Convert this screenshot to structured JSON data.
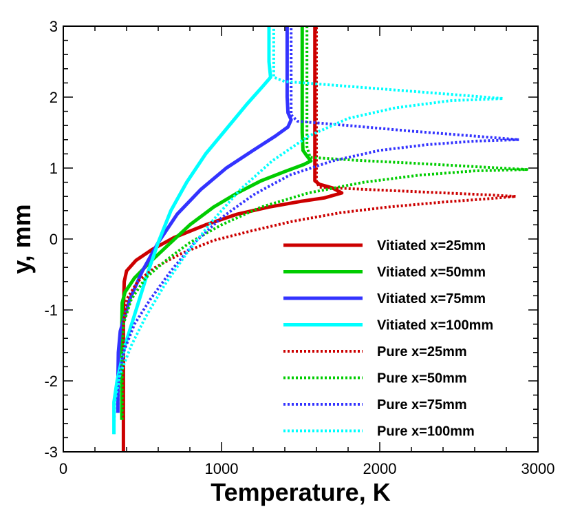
{
  "chart_data": {
    "type": "line",
    "xlabel": "Temperature, K",
    "ylabel": "y, mm",
    "xlim": [
      0,
      3000
    ],
    "ylim": [
      -3,
      3
    ],
    "x_ticks": [
      0,
      1000,
      2000,
      3000
    ],
    "x_tick_labels": [
      "0",
      "1000",
      "2000",
      "3000"
    ],
    "y_ticks": [
      -3,
      -2,
      -1,
      0,
      1,
      2,
      3
    ],
    "y_tick_labels": [
      "-3",
      "-2",
      "-1",
      "0",
      "1",
      "2",
      "3"
    ],
    "legend_position": "bottom-right",
    "series": [
      {
        "name": "Vitiated x=25mm",
        "color": "#cc0000",
        "style": "solid",
        "points": [
          [
            380,
            -3.1
          ],
          [
            380,
            -2.0
          ],
          [
            380,
            -1.0
          ],
          [
            385,
            -0.6
          ],
          [
            400,
            -0.45
          ],
          [
            460,
            -0.3
          ],
          [
            560,
            -0.15
          ],
          [
            700,
            0.02
          ],
          [
            900,
            0.2
          ],
          [
            1100,
            0.35
          ],
          [
            1300,
            0.45
          ],
          [
            1500,
            0.53
          ],
          [
            1650,
            0.58
          ],
          [
            1760,
            0.65
          ],
          [
            1700,
            0.72
          ],
          [
            1620,
            0.77
          ],
          [
            1590,
            0.82
          ],
          [
            1590,
            1.2
          ],
          [
            1590,
            2.0
          ],
          [
            1590,
            3.0
          ]
        ]
      },
      {
        "name": "Vitiated x=50mm",
        "color": "#00cc00",
        "style": "solid",
        "points": [
          [
            370,
            -2.55
          ],
          [
            370,
            -2.0
          ],
          [
            370,
            -1.2
          ],
          [
            372,
            -0.9
          ],
          [
            390,
            -0.75
          ],
          [
            450,
            -0.55
          ],
          [
            560,
            -0.3
          ],
          [
            680,
            -0.05
          ],
          [
            800,
            0.2
          ],
          [
            950,
            0.45
          ],
          [
            1100,
            0.65
          ],
          [
            1250,
            0.82
          ],
          [
            1400,
            0.95
          ],
          [
            1520,
            1.05
          ],
          [
            1565,
            1.1
          ],
          [
            1540,
            1.17
          ],
          [
            1515,
            1.25
          ],
          [
            1510,
            1.5
          ],
          [
            1510,
            2.0
          ],
          [
            1510,
            3.0
          ]
        ]
      },
      {
        "name": "Vitiated x=75mm",
        "color": "#3333ff",
        "style": "solid",
        "points": [
          [
            345,
            -2.45
          ],
          [
            345,
            -2.0
          ],
          [
            348,
            -1.6
          ],
          [
            360,
            -1.3
          ],
          [
            420,
            -0.85
          ],
          [
            500,
            -0.45
          ],
          [
            600,
            -0.05
          ],
          [
            720,
            0.35
          ],
          [
            870,
            0.7
          ],
          [
            1030,
            1.0
          ],
          [
            1200,
            1.25
          ],
          [
            1340,
            1.45
          ],
          [
            1420,
            1.58
          ],
          [
            1440,
            1.68
          ],
          [
            1420,
            1.78
          ],
          [
            1415,
            2.0
          ],
          [
            1415,
            2.5
          ],
          [
            1415,
            3.0
          ]
        ]
      },
      {
        "name": "Vitiated x=100mm",
        "color": "#00ffff",
        "style": "solid",
        "points": [
          [
            320,
            -2.75
          ],
          [
            320,
            -2.3
          ],
          [
            340,
            -2.0
          ],
          [
            390,
            -1.5
          ],
          [
            460,
            -1.0
          ],
          [
            530,
            -0.5
          ],
          [
            600,
            -0.05
          ],
          [
            680,
            0.4
          ],
          [
            780,
            0.8
          ],
          [
            900,
            1.2
          ],
          [
            1030,
            1.55
          ],
          [
            1160,
            1.9
          ],
          [
            1260,
            2.15
          ],
          [
            1310,
            2.28
          ],
          [
            1300,
            2.5
          ],
          [
            1300,
            3.0
          ]
        ]
      },
      {
        "name": "Pure x=25mm",
        "color": "#cc0000",
        "style": "dotted",
        "points": [
          [
            380,
            -3.1
          ],
          [
            380,
            -2.0
          ],
          [
            380,
            -1.2
          ],
          [
            400,
            -0.85
          ],
          [
            470,
            -0.6
          ],
          [
            580,
            -0.4
          ],
          [
            750,
            -0.2
          ],
          [
            950,
            -0.02
          ],
          [
            1200,
            0.12
          ],
          [
            1450,
            0.25
          ],
          [
            1750,
            0.37
          ],
          [
            2050,
            0.45
          ],
          [
            2400,
            0.52
          ],
          [
            2700,
            0.57
          ],
          [
            2860,
            0.6
          ],
          [
            2700,
            0.62
          ],
          [
            2300,
            0.66
          ],
          [
            1900,
            0.7
          ],
          [
            1620,
            0.73
          ],
          [
            1600,
            0.8
          ],
          [
            1600,
            2.0
          ],
          [
            1600,
            3.0
          ]
        ]
      },
      {
        "name": "Pure x=50mm",
        "color": "#00cc00",
        "style": "dotted",
        "points": [
          [
            370,
            -2.55
          ],
          [
            370,
            -1.6
          ],
          [
            380,
            -1.2
          ],
          [
            430,
            -0.85
          ],
          [
            520,
            -0.55
          ],
          [
            650,
            -0.3
          ],
          [
            800,
            -0.05
          ],
          [
            1000,
            0.2
          ],
          [
            1250,
            0.45
          ],
          [
            1550,
            0.65
          ],
          [
            1900,
            0.8
          ],
          [
            2250,
            0.9
          ],
          [
            2600,
            0.96
          ],
          [
            2930,
            0.98
          ],
          [
            2600,
            1.02
          ],
          [
            2200,
            1.07
          ],
          [
            1850,
            1.11
          ],
          [
            1560,
            1.15
          ],
          [
            1540,
            1.3
          ],
          [
            1540,
            2.0
          ],
          [
            1540,
            3.0
          ]
        ]
      },
      {
        "name": "Pure x=75mm",
        "color": "#3333ff",
        "style": "dotted",
        "points": [
          [
            345,
            -2.45
          ],
          [
            350,
            -2.0
          ],
          [
            380,
            -1.6
          ],
          [
            450,
            -1.2
          ],
          [
            550,
            -0.85
          ],
          [
            680,
            -0.45
          ],
          [
            830,
            -0.05
          ],
          [
            1000,
            0.3
          ],
          [
            1200,
            0.62
          ],
          [
            1430,
            0.9
          ],
          [
            1700,
            1.1
          ],
          [
            2000,
            1.25
          ],
          [
            2300,
            1.33
          ],
          [
            2600,
            1.38
          ],
          [
            2880,
            1.4
          ],
          [
            2600,
            1.45
          ],
          [
            2200,
            1.52
          ],
          [
            1800,
            1.6
          ],
          [
            1480,
            1.66
          ],
          [
            1440,
            1.75
          ],
          [
            1440,
            2.0
          ],
          [
            1440,
            3.0
          ]
        ]
      },
      {
        "name": "Pure x=100mm",
        "color": "#00ffff",
        "style": "dotted",
        "points": [
          [
            320,
            -2.75
          ],
          [
            325,
            -2.3
          ],
          [
            360,
            -1.9
          ],
          [
            430,
            -1.5
          ],
          [
            520,
            -1.1
          ],
          [
            640,
            -0.65
          ],
          [
            780,
            -0.2
          ],
          [
            940,
            0.25
          ],
          [
            1120,
            0.7
          ],
          [
            1320,
            1.1
          ],
          [
            1550,
            1.45
          ],
          [
            1800,
            1.7
          ],
          [
            2100,
            1.85
          ],
          [
            2450,
            1.95
          ],
          [
            2780,
            1.98
          ],
          [
            2500,
            2.03
          ],
          [
            2100,
            2.1
          ],
          [
            1700,
            2.17
          ],
          [
            1400,
            2.22
          ],
          [
            1330,
            2.28
          ],
          [
            1330,
            2.5
          ],
          [
            1330,
            3.0
          ]
        ]
      }
    ]
  }
}
